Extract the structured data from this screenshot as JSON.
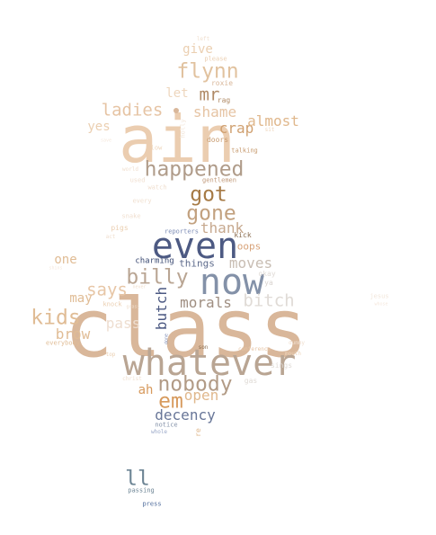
{
  "words": [
    {
      "text": "class",
      "color": "#d9b79a"
    },
    {
      "text": "ain",
      "color": "#ebcdb0"
    },
    {
      "text": "whatever",
      "color": "#b9a593"
    },
    {
      "text": "now",
      "color": "#8391a8"
    },
    {
      "text": "even",
      "color": "#4d5a83"
    },
    {
      "text": "happened",
      "color": "#b09c8a"
    },
    {
      "text": "flynn",
      "color": "#e1c29f"
    },
    {
      "text": "gone",
      "color": "#c2a17f"
    },
    {
      "text": "got",
      "color": "#a67a45"
    },
    {
      "text": "billy",
      "color": "#b9a593"
    },
    {
      "text": "nobody",
      "color": "#b29b86"
    },
    {
      "text": "kids",
      "color": "#e0bc95"
    },
    {
      "text": "em",
      "color": "#d79a5d"
    },
    {
      "text": "ladies",
      "color": "#e6c4a4"
    },
    {
      "text": "mr",
      "color": "#b08a66"
    },
    {
      "text": "says",
      "color": "#e7c6a6"
    },
    {
      "text": "bitch",
      "color": "#e0dbd6"
    },
    {
      "text": "decency",
      "color": "#687698"
    },
    {
      "text": "morals",
      "color": "#9f8e81"
    },
    {
      "text": "moves",
      "color": "#c8bdb3"
    },
    {
      "text": "butch",
      "color": "#4d5a83"
    },
    {
      "text": "ll",
      "color": "#6c8494"
    },
    {
      "text": "crap",
      "color": "#d0a070"
    },
    {
      "text": "almost",
      "color": "#e0b88d"
    },
    {
      "text": "shame",
      "color": "#e6c4a4"
    },
    {
      "text": "thank",
      "color": "#c7a98f"
    },
    {
      "text": "open",
      "color": "#e0b88d"
    },
    {
      "text": "brow",
      "color": "#e0bc95"
    },
    {
      "text": "pass",
      "color": "#eeded0"
    },
    {
      "text": "give",
      "color": "#ebcfb1"
    },
    {
      "text": "one",
      "color": "#e0bc95"
    },
    {
      "text": "may",
      "color": "#e0bc95"
    },
    {
      "text": "let",
      "color": "#eed6bd"
    },
    {
      "text": "yes",
      "color": "#ebcfb1"
    },
    {
      "text": "ah",
      "color": "#d79a5d"
    },
    {
      "text": "things",
      "color": "#5e6b8c"
    },
    {
      "text": "oops",
      "color": "#d8a37a"
    },
    {
      "text": "charming",
      "color": "#3b4a72"
    },
    {
      "text": "reporters",
      "color": "#7b8bb5"
    },
    {
      "text": "kick",
      "color": "#8a6d50"
    },
    {
      "text": "roxie",
      "color": "#d9b79a"
    },
    {
      "text": "rag",
      "color": "#b08a66"
    },
    {
      "text": "doors",
      "color": "#c79a6e"
    },
    {
      "text": "talking",
      "color": "#c79a6e"
    },
    {
      "text": "gentlemen",
      "color": "#c19a7a"
    },
    {
      "text": "please",
      "color": "#ebcfb1"
    },
    {
      "text": "left",
      "color": "#f0dfcf"
    },
    {
      "text": "sit",
      "color": "#eed6bd"
    },
    {
      "text": "holly",
      "color": "#f2e6da"
    },
    {
      "text": "low",
      "color": "#eed6bd"
    },
    {
      "text": "save",
      "color": "#f5e8dd"
    },
    {
      "text": "world",
      "color": "#f0dfcf"
    },
    {
      "text": "used",
      "color": "#f0dfcf"
    },
    {
      "text": "watch",
      "color": "#f0dfcf"
    },
    {
      "text": "every",
      "color": "#f0dfcf"
    },
    {
      "text": "snake",
      "color": "#f0dfcf"
    },
    {
      "text": "pigs",
      "color": "#ebcfb1"
    },
    {
      "text": "act",
      "color": "#f0dfcf"
    },
    {
      "text": "okay",
      "color": "#e0dbd6"
    },
    {
      "text": "ya",
      "color": "#d9d3cf"
    },
    {
      "text": "shins",
      "color": "#f5e8dd"
    },
    {
      "text": "knock",
      "color": "#ebcfb1"
    },
    {
      "text": "grass",
      "color": "#f0dfcf"
    },
    {
      "text": "never",
      "color": "#f0dfcf"
    },
    {
      "text": "jesus",
      "color": "#f2e6da"
    },
    {
      "text": "whose",
      "color": "#f5e8dd"
    },
    {
      "text": "done",
      "color": "#7b8bb5"
    },
    {
      "text": "son",
      "color": "#8a6d50"
    },
    {
      "text": "dummy",
      "color": "#f0dfcf"
    },
    {
      "text": "conference",
      "color": "#e6c4a4"
    },
    {
      "text": "mouth",
      "color": "#eed6bd"
    },
    {
      "text": "sings",
      "color": "#e0dbd6"
    },
    {
      "text": "everybody",
      "color": "#e0bc95"
    },
    {
      "text": "top",
      "color": "#ebcfb1"
    },
    {
      "text": "christ",
      "color": "#f0dfcf"
    },
    {
      "text": "gas",
      "color": "#e0dbd6"
    },
    {
      "text": "notice",
      "color": "#8391a8"
    },
    {
      "text": "whole",
      "color": "#9aa8c8"
    },
    {
      "text": "re",
      "color": "#e0b88d"
    },
    {
      "text": "passing",
      "color": "#6c8494"
    },
    {
      "text": "press",
      "color": "#4d6a9a"
    }
  ]
}
